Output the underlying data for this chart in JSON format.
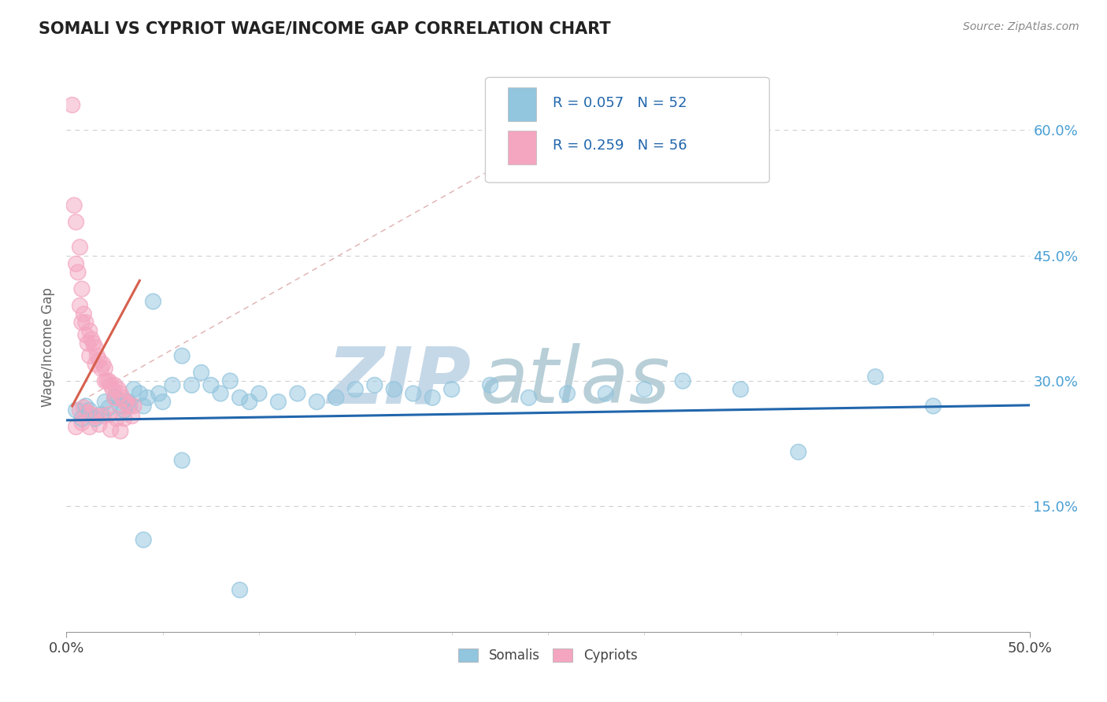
{
  "title": "SOMALI VS CYPRIOT WAGE/INCOME GAP CORRELATION CHART",
  "source_text": "Source: ZipAtlas.com",
  "xlim": [
    0.0,
    0.5
  ],
  "ylim": [
    0.0,
    0.68
  ],
  "ylabel": "Wage/Income Gap",
  "somali_R": 0.057,
  "somali_N": 52,
  "cypriot_R": 0.259,
  "cypriot_N": 56,
  "somali_color": "#92c5de",
  "cypriot_color": "#f4a6c0",
  "somali_line_color": "#2166ac",
  "cypriot_line_color": "#d6604d",
  "ref_line_color": "#e0b0b0",
  "legend_R_N_color": "#2166ac",
  "watermark_zip_color": "#c5d8e8",
  "watermark_atlas_color": "#b8cfd8",
  "background_color": "#ffffff",
  "somali_x": [
    0.005,
    0.008,
    0.01,
    0.012,
    0.015,
    0.018,
    0.02,
    0.022,
    0.025,
    0.028,
    0.03,
    0.032,
    0.035,
    0.038,
    0.04,
    0.042,
    0.045,
    0.048,
    0.05,
    0.055,
    0.06,
    0.065,
    0.07,
    0.075,
    0.08,
    0.085,
    0.09,
    0.095,
    0.1,
    0.11,
    0.12,
    0.13,
    0.14,
    0.15,
    0.16,
    0.17,
    0.18,
    0.19,
    0.2,
    0.22,
    0.24,
    0.26,
    0.28,
    0.3,
    0.32,
    0.35,
    0.38,
    0.42,
    0.45,
    0.04,
    0.06,
    0.09
  ],
  "somali_y": [
    0.265,
    0.255,
    0.27,
    0.265,
    0.255,
    0.26,
    0.275,
    0.268,
    0.28,
    0.27,
    0.265,
    0.275,
    0.29,
    0.285,
    0.27,
    0.28,
    0.395,
    0.285,
    0.275,
    0.295,
    0.33,
    0.295,
    0.31,
    0.295,
    0.285,
    0.3,
    0.28,
    0.275,
    0.285,
    0.275,
    0.285,
    0.275,
    0.28,
    0.29,
    0.295,
    0.29,
    0.285,
    0.28,
    0.29,
    0.295,
    0.28,
    0.285,
    0.285,
    0.29,
    0.3,
    0.29,
    0.215,
    0.305,
    0.27,
    0.11,
    0.205,
    0.05
  ],
  "cypriot_x": [
    0.003,
    0.004,
    0.005,
    0.005,
    0.006,
    0.007,
    0.007,
    0.008,
    0.008,
    0.009,
    0.01,
    0.01,
    0.011,
    0.012,
    0.012,
    0.013,
    0.014,
    0.015,
    0.015,
    0.016,
    0.017,
    0.018,
    0.019,
    0.02,
    0.02,
    0.021,
    0.022,
    0.023,
    0.024,
    0.025,
    0.025,
    0.026,
    0.027,
    0.028,
    0.029,
    0.03,
    0.031,
    0.032,
    0.033,
    0.035,
    0.007,
    0.009,
    0.011,
    0.013,
    0.016,
    0.019,
    0.022,
    0.026,
    0.03,
    0.034,
    0.005,
    0.008,
    0.012,
    0.017,
    0.023,
    0.028
  ],
  "cypriot_y": [
    0.63,
    0.51,
    0.49,
    0.44,
    0.43,
    0.46,
    0.39,
    0.41,
    0.37,
    0.38,
    0.355,
    0.37,
    0.345,
    0.36,
    0.33,
    0.35,
    0.345,
    0.34,
    0.32,
    0.33,
    0.325,
    0.315,
    0.32,
    0.3,
    0.315,
    0.3,
    0.3,
    0.295,
    0.29,
    0.295,
    0.28,
    0.28,
    0.29,
    0.285,
    0.28,
    0.275,
    0.275,
    0.27,
    0.27,
    0.27,
    0.265,
    0.268,
    0.262,
    0.26,
    0.258,
    0.258,
    0.26,
    0.255,
    0.255,
    0.258,
    0.245,
    0.25,
    0.245,
    0.248,
    0.242,
    0.24
  ],
  "somali_trendline": [
    0.0,
    0.5,
    0.253,
    0.271
  ],
  "cypriot_trendline": [
    0.003,
    0.038,
    0.27,
    0.42
  ],
  "ref_dashed_line": [
    0.003,
    0.28,
    0.27,
    0.63
  ]
}
